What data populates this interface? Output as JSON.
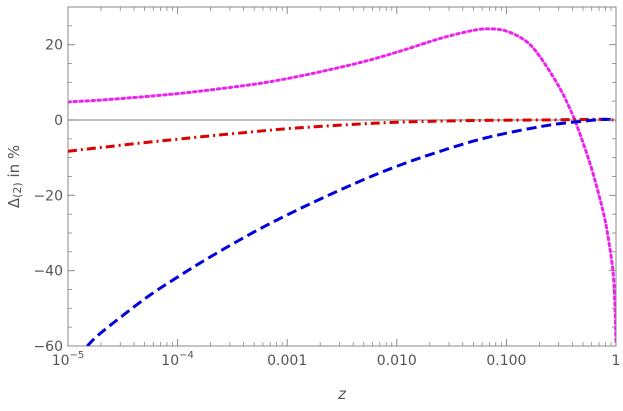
{
  "chart_data": {
    "type": "line",
    "title": "",
    "xlabel": "z",
    "ylabel": "Δ(2) in %",
    "ylabel_main": "Δ",
    "ylabel_sub": "(2)",
    "ylabel_suffix": " in %",
    "x_scale": "log",
    "xlim": [
      1e-05,
      1
    ],
    "ylim": [
      -60,
      30
    ],
    "grid": false,
    "legend": "none",
    "x_ticks": [
      {
        "value": 1e-05,
        "label_base": "10",
        "label_exp": "−5"
      },
      {
        "value": 0.0001,
        "label_base": "10",
        "label_exp": "−4"
      },
      {
        "value": 0.001,
        "label": "0.001"
      },
      {
        "value": 0.01,
        "label": "0.010"
      },
      {
        "value": 0.1,
        "label": "0.100"
      },
      {
        "value": 1,
        "label": "1"
      }
    ],
    "y_ticks": [
      {
        "value": 20,
        "label": "20"
      },
      {
        "value": 0,
        "label": "0"
      },
      {
        "value": -20,
        "label": "−20"
      },
      {
        "value": -40,
        "label": "−40"
      },
      {
        "value": -60,
        "label": "−60"
      }
    ],
    "zero_line": {
      "value": 0,
      "color": "#999999"
    },
    "series": [
      {
        "color": "#ee22ee",
        "style": "dotted",
        "x": [
          1e-05,
          2e-05,
          5e-05,
          0.0001,
          0.0002,
          0.0005,
          0.001,
          0.002,
          0.005,
          0.01,
          0.02,
          0.03,
          0.05,
          0.07,
          0.1,
          0.15,
          0.2,
          0.3,
          0.4,
          0.5,
          0.6,
          0.7,
          0.8,
          0.9,
          0.95,
          0.98,
          1.0
        ],
        "y": [
          4.8,
          5.3,
          6.2,
          7.0,
          8.0,
          9.5,
          11.0,
          12.8,
          15.5,
          18.0,
          20.8,
          22.3,
          23.8,
          24.2,
          23.6,
          21.0,
          17.0,
          9.0,
          1.5,
          -6.0,
          -13.0,
          -20.0,
          -27.0,
          -36.0,
          -42.0,
          -50.0,
          -59.0
        ]
      },
      {
        "color": "#dd0000",
        "style": "dash-dot",
        "x": [
          1e-05,
          2e-05,
          5e-05,
          0.0001,
          0.0002,
          0.0005,
          0.001,
          0.002,
          0.005,
          0.01,
          0.02,
          0.05,
          0.1,
          0.2,
          0.3,
          0.5,
          0.7,
          0.8,
          0.9,
          1.0
        ],
        "y": [
          -8.3,
          -7.3,
          -6.0,
          -5.1,
          -4.2,
          -3.1,
          -2.3,
          -1.7,
          -1.0,
          -0.6,
          -0.35,
          -0.15,
          -0.05,
          0.0,
          0.05,
          0.15,
          0.2,
          0.15,
          0.05,
          -0.1
        ]
      },
      {
        "color": "#0000dd",
        "style": "dashed",
        "x": [
          1.5e-05,
          2e-05,
          5e-05,
          0.0001,
          0.0002,
          0.0005,
          0.001,
          0.002,
          0.005,
          0.01,
          0.02,
          0.05,
          0.1,
          0.2,
          0.3,
          0.5,
          0.7,
          0.8,
          0.9,
          1.0
        ],
        "y": [
          -60.0,
          -56.5,
          -47.5,
          -41.7,
          -36.3,
          -29.7,
          -25.2,
          -21.0,
          -15.8,
          -12.3,
          -9.2,
          -5.6,
          -3.5,
          -1.8,
          -1.0,
          -0.3,
          0.1,
          0.2,
          0.1,
          -0.2
        ]
      }
    ]
  }
}
